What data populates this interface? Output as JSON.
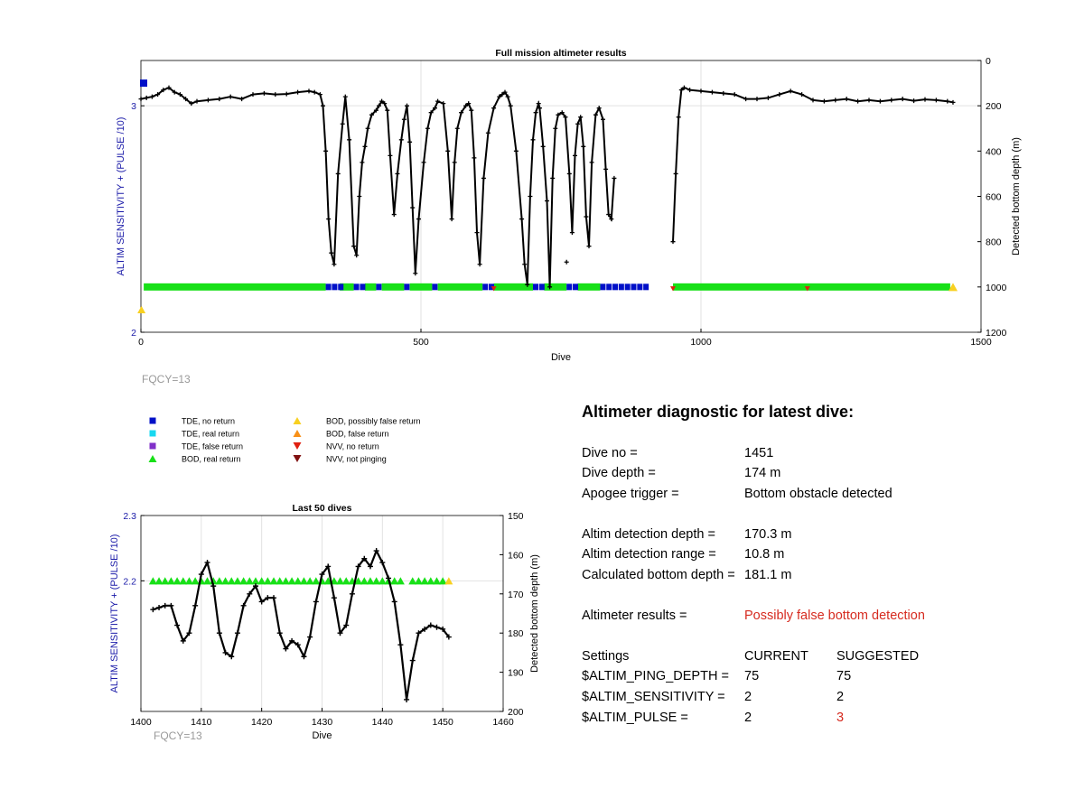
{
  "chart_data": [
    {
      "type": "scatter",
      "title": "Full mission altimeter results",
      "xlabel": "Dive",
      "ylabel": "ALTIM SENSITIVITY + (PULSE /10)",
      "y2label": "Detected bottom depth (m)",
      "xlim": [
        0,
        1500
      ],
      "ylim": [
        2,
        3.2
      ],
      "y2lim": [
        1200,
        0
      ],
      "xticks": [
        "0",
        "500",
        "1000",
        "1500"
      ],
      "yticks": [
        "2",
        "3"
      ],
      "y2ticks": [
        "0",
        "200",
        "400",
        "600",
        "800",
        "1000",
        "1200"
      ],
      "grid": true,
      "footer": "FQCY=13",
      "depth_series": {
        "x": [
          0,
          10,
          20,
          30,
          40,
          50,
          60,
          70,
          80,
          90,
          100,
          120,
          140,
          160,
          180,
          200,
          220,
          240,
          260,
          280,
          300,
          310,
          320,
          325,
          330,
          335,
          340,
          345,
          352,
          360,
          365,
          372,
          380,
          385,
          390,
          395,
          400,
          405,
          412,
          420,
          425,
          430,
          435,
          440,
          445,
          452,
          458,
          465,
          470,
          475,
          480,
          485,
          490,
          496,
          505,
          512,
          518,
          525,
          530,
          540,
          548,
          555,
          560,
          565,
          572,
          580,
          585,
          590,
          595,
          600,
          605,
          612,
          620,
          630,
          640,
          645,
          650,
          655,
          660,
          670,
          680,
          685,
          690,
          695,
          700,
          705,
          710,
          712,
          718,
          725,
          730,
          735,
          740,
          745,
          752,
          758,
          765,
          770,
          775,
          780,
          785,
          790,
          795,
          800,
          805,
          812,
          818,
          825,
          830,
          835,
          840,
          845
        ],
        "y": [
          170,
          165,
          160,
          150,
          130,
          120,
          140,
          150,
          170,
          190,
          180,
          175,
          170,
          160,
          170,
          150,
          145,
          150,
          148,
          140,
          135,
          140,
          150,
          200,
          400,
          700,
          850,
          900,
          500,
          280,
          160,
          350,
          820,
          860,
          600,
          450,
          380,
          300,
          240,
          220,
          200,
          180,
          190,
          220,
          420,
          680,
          500,
          350,
          260,
          200,
          360,
          650,
          940,
          700,
          450,
          300,
          230,
          210,
          180,
          190,
          400,
          700,
          450,
          300,
          230,
          200,
          190,
          220,
          430,
          760,
          900,
          520,
          320,
          210,
          160,
          150,
          140,
          160,
          200,
          400,
          700,
          900,
          990,
          600,
          350,
          230,
          190,
          210,
          380,
          620,
          1000,
          520,
          300,
          240,
          230,
          250,
          500,
          760,
          420,
          280,
          250,
          380,
          690,
          820,
          450,
          240,
          210,
          260,
          480,
          680,
          700,
          520
        ]
      },
      "depth_series_b": {
        "x": [
          950,
          955,
          960,
          965,
          970,
          980,
          1000,
          1020,
          1040,
          1060,
          1080,
          1100,
          1120,
          1140,
          1160,
          1180,
          1200,
          1220,
          1240,
          1260,
          1280,
          1300,
          1320,
          1340,
          1360,
          1380,
          1400,
          1420,
          1440,
          1450
        ],
        "y": [
          800,
          500,
          250,
          130,
          120,
          130,
          135,
          140,
          145,
          150,
          170,
          170,
          165,
          150,
          135,
          150,
          175,
          180,
          175,
          170,
          180,
          175,
          180,
          175,
          170,
          178,
          172,
          175,
          180,
          185
        ]
      },
      "bod_real_ranges": [
        [
          5,
          330
        ],
        [
          355,
          380
        ],
        [
          400,
          420
        ],
        [
          430,
          470
        ],
        [
          480,
          520
        ],
        [
          530,
          610
        ],
        [
          630,
          700
        ],
        [
          720,
          760
        ],
        [
          780,
          820
        ],
        [
          950,
          1445
        ]
      ],
      "tde_no_return_ranges": [
        [
          330,
          355
        ],
        [
          380,
          400
        ],
        [
          420,
          430
        ],
        [
          470,
          480
        ],
        [
          520,
          530
        ],
        [
          610,
          630
        ],
        [
          700,
          720
        ],
        [
          760,
          780
        ],
        [
          820,
          900
        ]
      ]
    },
    {
      "type": "line",
      "title": "Last 50 dives",
      "xlabel": "Dive",
      "ylabel": "ALTIM SENSITIVITY + (PULSE /10)",
      "y2label": "Detected bottom depth (m)",
      "xlim": [
        1400,
        1460
      ],
      "ylim": [
        2.0,
        2.3
      ],
      "y2lim": [
        200,
        150
      ],
      "xticks": [
        "1400",
        "1410",
        "1420",
        "1430",
        "1440",
        "1450",
        "1460"
      ],
      "yticks": [
        "2.2",
        "2.3"
      ],
      "y2ticks": [
        "150",
        "160",
        "170",
        "180",
        "190",
        "200"
      ],
      "footer": "FQCY=13",
      "x": [
        1402,
        1403,
        1404,
        1405,
        1406,
        1407,
        1408,
        1409,
        1410,
        1411,
        1412,
        1413,
        1414,
        1415,
        1416,
        1417,
        1418,
        1419,
        1420,
        1421,
        1422,
        1423,
        1424,
        1425,
        1426,
        1427,
        1428,
        1429,
        1430,
        1431,
        1432,
        1433,
        1434,
        1435,
        1436,
        1437,
        1438,
        1439,
        1440,
        1441,
        1442,
        1443,
        1444,
        1445,
        1446,
        1447,
        1448,
        1449,
        1450,
        1451
      ],
      "depth": [
        174,
        173.5,
        173,
        173,
        178,
        182,
        180,
        173,
        165,
        162,
        168,
        180,
        185,
        186,
        180,
        173,
        170,
        168,
        172,
        171,
        171,
        180,
        184,
        182,
        183,
        186,
        181,
        172,
        165,
        163,
        171,
        180,
        178,
        170,
        163,
        161,
        163,
        159,
        162,
        166,
        172,
        183,
        197,
        187,
        180,
        179,
        178,
        178.5,
        179,
        181
      ],
      "bod_real_x": [
        1402,
        1403,
        1404,
        1405,
        1406,
        1407,
        1408,
        1409,
        1410,
        1411,
        1412,
        1413,
        1414,
        1415,
        1416,
        1417,
        1418,
        1419,
        1420,
        1421,
        1422,
        1423,
        1424,
        1425,
        1426,
        1427,
        1428,
        1429,
        1430,
        1431,
        1432,
        1433,
        1434,
        1435,
        1436,
        1437,
        1438,
        1439,
        1440,
        1441,
        1442,
        1443,
        1445,
        1446,
        1447,
        1448,
        1449,
        1450
      ],
      "bod_possibly_false_x": [
        1451
      ]
    }
  ],
  "legend": {
    "items": [
      {
        "label": "TDE, no return",
        "color": "#0010c8",
        "shape": "square"
      },
      {
        "label": "TDE, real return",
        "color": "#18d8f0",
        "shape": "square"
      },
      {
        "label": "TDE, false return",
        "color": "#8030c8",
        "shape": "square"
      },
      {
        "label": "BOD, real return",
        "color": "#18e018",
        "shape": "triangle-up"
      },
      {
        "label": "BOD, possibly false return",
        "color": "#f8d020",
        "shape": "triangle-up"
      },
      {
        "label": "BOD, false return",
        "color": "#f89018",
        "shape": "triangle-up"
      },
      {
        "label": "NVV, no return",
        "color": "#e02010",
        "shape": "triangle-down"
      },
      {
        "label": "NVV, not pinging",
        "color": "#801010",
        "shape": "triangle-down"
      }
    ]
  },
  "diagnostic": {
    "title": "Altimeter diagnostic for latest dive:",
    "dive_no_label": "Dive no =",
    "dive_no": "1451",
    "dive_depth_label": "Dive depth =",
    "dive_depth": "174 m",
    "apogee_label": "Apogee trigger =",
    "apogee": "Bottom obstacle detected",
    "altim_depth_label": "Altim detection depth =",
    "altim_depth": "170.3 m",
    "altim_range_label": "Altim detection range =",
    "altim_range": "10.8 m",
    "calc_depth_label": "Calculated bottom depth =",
    "calc_depth": "181.1 m",
    "results_label": "Altimeter results =",
    "results": "Possibly false bottom detection",
    "settings_label": "Settings",
    "current_label": "CURRENT",
    "suggested_label": "SUGGESTED",
    "ping_depth_label": "$ALTIM_PING_DEPTH =",
    "ping_depth_current": "75",
    "ping_depth_suggested": "75",
    "sensitivity_label": "$ALTIM_SENSITIVITY =",
    "sensitivity_current": "2",
    "sensitivity_suggested": "2",
    "pulse_label": "$ALTIM_PULSE =",
    "pulse_current": "2",
    "pulse_suggested": "3",
    "alert_color": "#d62b20"
  }
}
